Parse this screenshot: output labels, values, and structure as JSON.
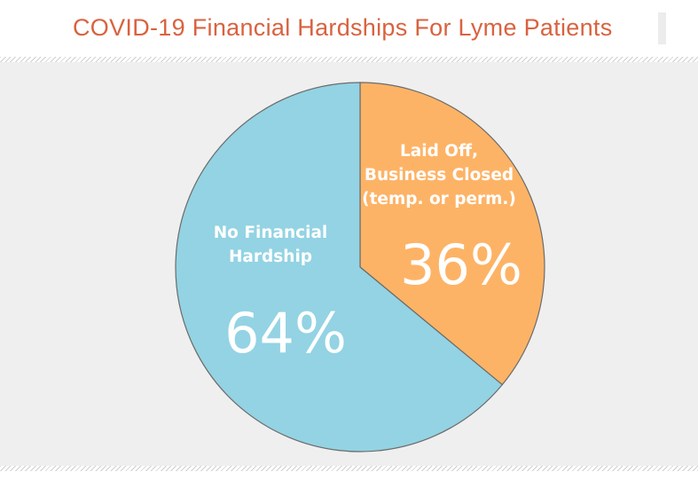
{
  "header": {
    "title": "COVID-19 Financial Hardships For Lyme Patients"
  },
  "colors": {
    "title": "#d9623f",
    "no_hardship": "#93d3e3",
    "laid_off": "#fdb366",
    "background": "#efefef"
  },
  "chart_data": {
    "type": "pie",
    "title": "COVID-19 Financial Hardships For Lyme Patients",
    "slices": [
      {
        "label_lines": [
          "Laid Off,",
          "Business Closed",
          "(temp. or perm.)"
        ],
        "value": 36,
        "value_label": "36%",
        "color": "#fdb366"
      },
      {
        "label_lines": [
          "No Financial",
          "Hardship"
        ],
        "value": 64,
        "value_label": "64%",
        "color": "#93d3e3"
      }
    ]
  }
}
